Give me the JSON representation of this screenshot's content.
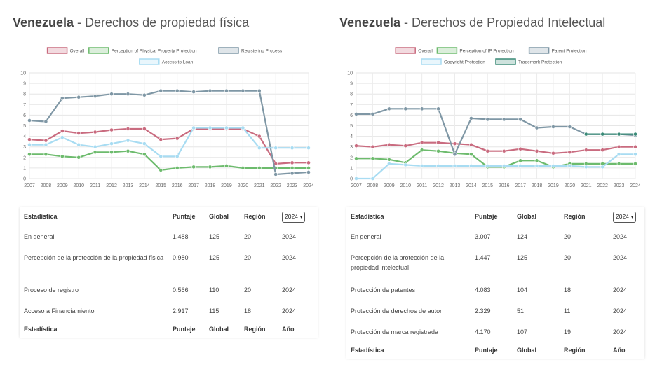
{
  "left": {
    "title_country": "Venezuela",
    "title_rest": " - Derechos de propiedad física",
    "table": {
      "headers": [
        "Estadística",
        "Puntaje",
        "Global",
        "Región"
      ],
      "year_select": "2024",
      "rows": [
        {
          "label": "En general",
          "score": "1.488",
          "global": "125",
          "region": "20",
          "year": "2024"
        },
        {
          "label": "Percepción de la protección de la propiedad física",
          "score": "0.980",
          "global": "125",
          "region": "20",
          "year": "2024"
        },
        {
          "label": "Proceso de registro",
          "score": "0.566",
          "global": "110",
          "region": "20",
          "year": "2024"
        },
        {
          "label": "Acceso a Financiamiento",
          "score": "2.917",
          "global": "115",
          "region": "18",
          "year": "2024"
        }
      ],
      "footer": [
        "Estadística",
        "Puntaje",
        "Global",
        "Región",
        "Año"
      ]
    }
  },
  "right": {
    "title_country": "Venezuela",
    "title_rest": " - Derechos de Propiedad Intelectual",
    "table": {
      "headers": [
        "Estadística",
        "Puntaje",
        "Global",
        "Región"
      ],
      "year_select": "2024",
      "rows": [
        {
          "label": "En general",
          "score": "3.007",
          "global": "124",
          "region": "20",
          "year": "2024"
        },
        {
          "label": "Percepción de la protección de la propiedad intelectual",
          "score": "1.447",
          "global": "125",
          "region": "20",
          "year": "2024"
        },
        {
          "label": "Protección de patentes",
          "score": "4.083",
          "global": "104",
          "region": "18",
          "year": "2024"
        },
        {
          "label": "Protección de derechos de autor",
          "score": "2.329",
          "global": "51",
          "region": "11",
          "year": "2024"
        },
        {
          "label": "Protección de marca registrada",
          "score": "4.170",
          "global": "107",
          "region": "19",
          "year": "2024"
        }
      ],
      "footer": [
        "Estadística",
        "Puntaje",
        "Global",
        "Región",
        "Año"
      ]
    }
  },
  "chart_data": [
    {
      "type": "line",
      "x": [
        "2007",
        "2008",
        "2009",
        "2010",
        "2011",
        "2012",
        "2013",
        "2014",
        "2015",
        "2016",
        "2017",
        "2018",
        "2019",
        "2020",
        "2021",
        "2022",
        "2023",
        "2024"
      ],
      "ylim": [
        0,
        10
      ],
      "yticks": [
        0,
        1,
        2,
        3,
        4,
        5,
        6,
        7,
        8,
        9,
        10
      ],
      "grid": true,
      "legend_placement": "top",
      "series": [
        {
          "name": "Overall",
          "color": "#c96b7f",
          "values": [
            3.7,
            3.6,
            4.5,
            4.3,
            4.4,
            4.6,
            4.7,
            4.7,
            3.7,
            3.8,
            4.7,
            4.7,
            4.7,
            4.7,
            4.0,
            1.4,
            1.5,
            1.5
          ]
        },
        {
          "name": "Perception of Physical Property Protection",
          "color": "#6dbb6d",
          "values": [
            2.3,
            2.3,
            2.1,
            2.0,
            2.5,
            2.5,
            2.6,
            2.3,
            0.8,
            1.0,
            1.1,
            1.1,
            1.2,
            1.0,
            1.0,
            1.0,
            1.0,
            1.0
          ]
        },
        {
          "name": "Registering Process",
          "color": "#7f97a5",
          "values": [
            5.5,
            5.4,
            7.6,
            7.7,
            7.8,
            8.0,
            8.0,
            7.9,
            8.3,
            8.3,
            8.2,
            8.3,
            8.3,
            8.3,
            8.3,
            0.4,
            0.5,
            0.6
          ]
        },
        {
          "name": "Access to Loan",
          "color": "#a8dcf2",
          "values": [
            3.2,
            3.2,
            3.9,
            3.2,
            3.0,
            3.3,
            3.6,
            3.3,
            2.1,
            2.1,
            4.8,
            4.8,
            4.8,
            4.8,
            2.9,
            2.9,
            2.9,
            2.9
          ]
        }
      ]
    },
    {
      "type": "line",
      "x": [
        "2007",
        "2008",
        "2009",
        "2010",
        "2011",
        "2012",
        "2013",
        "2014",
        "2015",
        "2016",
        "2017",
        "2018",
        "2019",
        "2020",
        "2021",
        "2022",
        "2023",
        "2024"
      ],
      "ylim": [
        0,
        10
      ],
      "yticks": [
        0,
        1,
        2,
        3,
        4,
        5,
        6,
        7,
        8,
        9,
        10
      ],
      "grid": true,
      "legend_placement": "top",
      "series": [
        {
          "name": "Overall",
          "color": "#c96b7f",
          "values": [
            3.1,
            3.0,
            3.2,
            3.1,
            3.4,
            3.4,
            3.3,
            3.2,
            2.6,
            2.6,
            2.8,
            2.6,
            2.4,
            2.5,
            2.7,
            2.7,
            3.0,
            3.0
          ]
        },
        {
          "name": "Perception of IP Protection",
          "color": "#6dbb6d",
          "values": [
            1.9,
            1.9,
            1.8,
            1.5,
            2.7,
            2.6,
            2.4,
            2.3,
            1.1,
            1.1,
            1.7,
            1.7,
            1.1,
            1.4,
            1.4,
            1.4,
            1.4,
            1.4
          ]
        },
        {
          "name": "Patent Protection",
          "color": "#7f97a5",
          "values": [
            6.1,
            6.1,
            6.6,
            6.6,
            6.6,
            6.6,
            2.3,
            5.7,
            5.6,
            5.6,
            5.6,
            4.8,
            4.9,
            4.9,
            4.2,
            4.2,
            4.2,
            4.1
          ]
        },
        {
          "name": "Copyright Protection",
          "color": "#a8dcf2",
          "values": [
            0.0,
            0.0,
            1.4,
            1.3,
            1.2,
            1.2,
            1.2,
            1.2,
            1.2,
            1.2,
            1.2,
            1.2,
            1.2,
            1.2,
            1.1,
            1.1,
            2.3,
            2.3
          ]
        },
        {
          "name": "Trademark Protection",
          "color": "#3a8a77",
          "values": [
            null,
            null,
            null,
            null,
            null,
            null,
            null,
            null,
            null,
            null,
            null,
            null,
            null,
            null,
            4.2,
            4.2,
            4.2,
            4.2
          ]
        }
      ]
    }
  ]
}
